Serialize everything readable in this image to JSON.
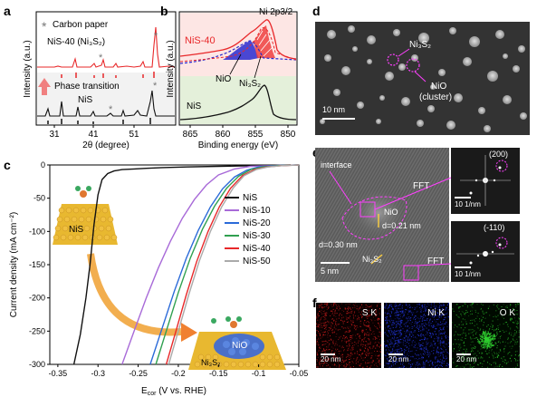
{
  "panels": {
    "a": {
      "letter": "a",
      "legend_star": "Carbon paper",
      "label_top": "NiS-40 (Ni₃S₂)",
      "label_mid": "Phase transition",
      "label_bot": "NiS",
      "xlabel": "2θ (degree)",
      "ylabel": "Intensity (a.u.)",
      "xticks": [
        "31",
        "41",
        "51"
      ],
      "colors": {
        "top": "#e8282a",
        "bot": "#111111",
        "marker": "#777777"
      }
    },
    "b": {
      "letter": "b",
      "label_nis40": "NiS-40",
      "label_ni2p": "Ni 2p3/2",
      "label_nio": "NiO",
      "label_ni3s2": "Ni₃S₂",
      "label_nis": "NiS",
      "xlabel": "Binding energy (eV)",
      "ylabel": "Intensity (a.u.)",
      "xticks": [
        "865",
        "860",
        "855",
        "850"
      ],
      "colors": {
        "red": "#e8282a",
        "blue": "#2a2ad0",
        "green_bg": "#e4f0da",
        "pink_bg": "#fde6e4"
      }
    },
    "c": {
      "letter": "c",
      "xlabel": "E",
      "xlabel_sub": "cor",
      "xlabel_rest": " (V vs. RHE)",
      "ylabel": "Current density (mA cm⁻²)",
      "inset_top_label": "NiS",
      "inset_bot_label_1": "NiO",
      "inset_bot_label_2": "Ni₃S₂"
    },
    "d": {
      "letter": "d",
      "label_ni3s2": "Ni₃S₂",
      "label_nio": "NiO",
      "label_cluster": "(cluster)",
      "scale": "10 nm"
    },
    "e": {
      "letter": "e",
      "label_interface": "interface",
      "label_nio": "NiO",
      "label_d021": "d=0.21 nm",
      "label_d030": "d=0.30 nm",
      "label_ni3s2": "Ni₃S₂",
      "label_fft1": "FFT",
      "label_fft2": "FFT",
      "scale": "5 nm",
      "fft1_index": "(200)",
      "fft2_index": "(-110)",
      "fft1_scale": "10 1/nm",
      "fft2_scale": "10 1/nm"
    },
    "f": {
      "letter": "f",
      "maps": [
        {
          "element": "S K",
          "scale": "20 nm",
          "color": "#e02020"
        },
        {
          "element": "Ni K",
          "scale": "20 nm",
          "color": "#2a40ff"
        },
        {
          "element": "O K",
          "scale": "20 nm",
          "color": "#30d030"
        }
      ]
    }
  },
  "chart_data": [
    {
      "type": "line",
      "panel": "c",
      "xlabel": "Ecor (V vs. RHE)",
      "ylabel": "Current density (mA cm-2)",
      "xlim": [
        -0.36,
        -0.05
      ],
      "ylim": [
        -300,
        0
      ],
      "xticks": [
        -0.35,
        -0.3,
        -0.25,
        -0.2,
        -0.15,
        -0.1,
        -0.05
      ],
      "yticks": [
        0,
        -50,
        -100,
        -150,
        -200,
        -250,
        -300
      ],
      "legend_position": "right",
      "series": [
        {
          "name": "NiS",
          "color": "#111111",
          "x": [
            -0.33,
            -0.322,
            -0.315,
            -0.31,
            -0.305,
            -0.3,
            -0.295,
            -0.288,
            -0.28,
            -0.27,
            -0.255,
            -0.24,
            -0.22,
            -0.19,
            -0.15,
            -0.1,
            -0.06
          ],
          "y": [
            -300,
            -255,
            -200,
            -150,
            -90,
            -45,
            -22,
            -13,
            -9,
            -7,
            -6,
            -5,
            -4,
            -3,
            -2,
            -1,
            0
          ]
        },
        {
          "name": "NiS-10",
          "color": "#a86ad8",
          "x": [
            -0.27,
            -0.255,
            -0.24,
            -0.225,
            -0.21,
            -0.195,
            -0.18,
            -0.165,
            -0.15,
            -0.13,
            -0.11,
            -0.08,
            -0.05
          ],
          "y": [
            -300,
            -250,
            -200,
            -155,
            -115,
            -80,
            -52,
            -30,
            -15,
            -6,
            -2,
            -1,
            0
          ]
        },
        {
          "name": "NiS-20",
          "color": "#2a6ad8",
          "x": [
            -0.235,
            -0.22,
            -0.205,
            -0.19,
            -0.175,
            -0.16,
            -0.145,
            -0.13,
            -0.115,
            -0.1,
            -0.08,
            -0.05
          ],
          "y": [
            -300,
            -245,
            -190,
            -140,
            -98,
            -63,
            -36,
            -18,
            -8,
            -3,
            -1,
            0
          ]
        },
        {
          "name": "NiS-30",
          "color": "#30a050",
          "x": [
            -0.228,
            -0.215,
            -0.2,
            -0.185,
            -0.17,
            -0.155,
            -0.14,
            -0.125,
            -0.11,
            -0.095,
            -0.075,
            -0.05
          ],
          "y": [
            -300,
            -250,
            -192,
            -140,
            -97,
            -62,
            -35,
            -17,
            -7,
            -3,
            -1,
            0
          ]
        },
        {
          "name": "NiS-40",
          "color": "#e8282a",
          "x": [
            -0.215,
            -0.203,
            -0.19,
            -0.177,
            -0.163,
            -0.149,
            -0.135,
            -0.12,
            -0.105,
            -0.09,
            -0.07,
            -0.05
          ],
          "y": [
            -300,
            -250,
            -195,
            -145,
            -100,
            -63,
            -35,
            -16,
            -7,
            -3,
            -1,
            0
          ]
        },
        {
          "name": "NiS-50",
          "color": "#aaaaaa",
          "x": [
            -0.212,
            -0.2,
            -0.187,
            -0.174,
            -0.16,
            -0.146,
            -0.132,
            -0.118,
            -0.103,
            -0.088,
            -0.07,
            -0.05
          ],
          "y": [
            -300,
            -250,
            -195,
            -145,
            -100,
            -63,
            -35,
            -16,
            -7,
            -3,
            -1,
            0
          ]
        }
      ]
    }
  ]
}
